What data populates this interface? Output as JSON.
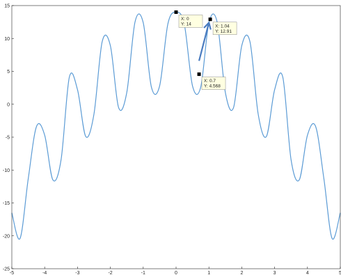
{
  "chart_data": {
    "type": "line",
    "title": "",
    "xlabel": "",
    "ylabel": "",
    "xlim": [
      -5,
      5
    ],
    "ylim": [
      -25,
      15
    ],
    "x_ticks": [
      -5,
      -4,
      -3,
      -2,
      -1,
      0,
      1,
      2,
      3,
      4,
      5
    ],
    "y_ticks": [
      15,
      10,
      5,
      0,
      -5,
      -10,
      -15,
      -20,
      -25
    ],
    "x_tick_labels": [
      "-5",
      "-4",
      "-3",
      "-2",
      "-1",
      "0",
      "1",
      "2",
      "3",
      "4",
      "5"
    ],
    "y_tick_labels": [
      "15",
      "10",
      "5",
      "0",
      "-5",
      "-10",
      "-15",
      "-20",
      "-25"
    ],
    "grid": false,
    "series": [
      {
        "color": "#5b9bd5",
        "x": [
          -5.0,
          -4.75,
          -4.5,
          -4.25,
          -4.0,
          -3.75,
          -3.5,
          -3.25,
          -3.0,
          -2.75,
          -2.5,
          -2.25,
          -2.0,
          -1.75,
          -1.5,
          -1.25,
          -1.0,
          -0.75,
          -0.5,
          -0.25,
          0.0,
          0.25,
          0.5,
          0.75,
          1.0,
          1.25,
          1.5,
          1.75,
          2.0,
          2.25,
          2.5,
          2.75,
          3.0,
          3.25,
          3.5,
          3.75,
          4.0,
          4.25,
          4.5,
          4.75,
          5.0
        ],
        "y": [
          -16.5,
          -20.4,
          -11.3,
          -3.4,
          -4.7,
          -11.5,
          -8.4,
          4.1,
          2.2,
          -4.9,
          -1.5,
          9.5,
          8.9,
          -0.5,
          1.8,
          12.5,
          12.4,
          2.6,
          2.8,
          12.2,
          14.0,
          12.2,
          2.8,
          2.6,
          12.4,
          12.5,
          1.8,
          -0.5,
          8.9,
          9.5,
          -1.5,
          -4.9,
          2.2,
          4.1,
          -8.4,
          -11.5,
          -4.7,
          -3.4,
          -11.3,
          -20.4,
          -16.5
        ]
      }
    ],
    "datatips": [
      {
        "x": 0,
        "y": 14,
        "x_label": "X: 0",
        "y_label": "Y: 14"
      },
      {
        "x": 1.04,
        "y": 12.91,
        "x_label": "X: 1.04",
        "y_label": "Y: 12.91"
      },
      {
        "x": 0.7,
        "y": 4.568,
        "x_label": "X: 0.7",
        "y_label": "Y: 4.568"
      }
    ],
    "annotation_arrow": {
      "from": {
        "x": 0.7,
        "y": 6.6
      },
      "to": {
        "x": 1.0,
        "y": 12.4
      },
      "color": "#4a7cc0"
    }
  }
}
